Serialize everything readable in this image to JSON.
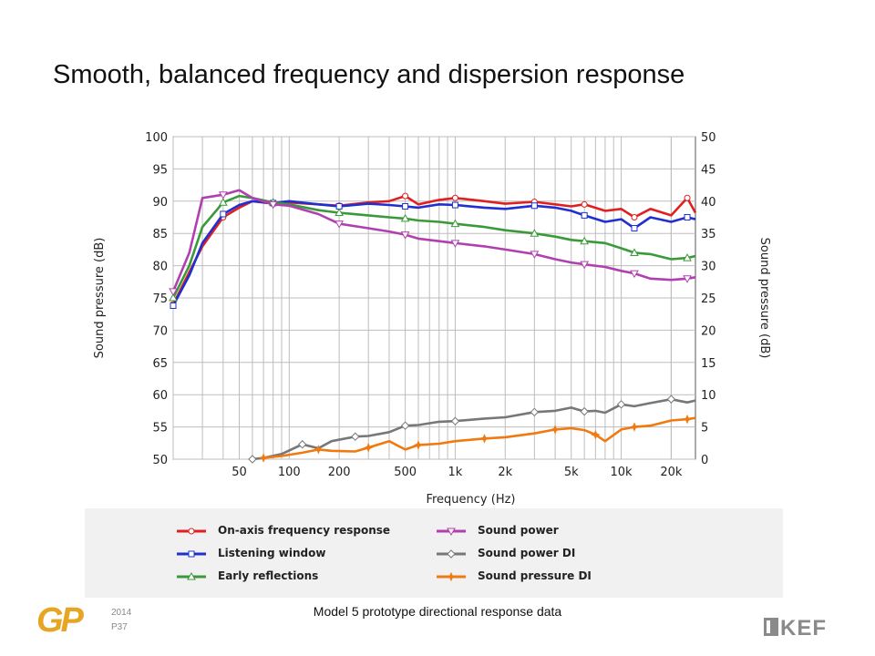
{
  "slide": {
    "title": "Smooth, balanced frequency and dispersion response",
    "footer_caption": "Model 5 prototype directional response data",
    "footer_year": "2014",
    "footer_page": "P37",
    "logo_left": "GP",
    "logo_right": "KEF",
    "logo_left_color": "#e6a623",
    "logo_right_color": "#8a8a8a"
  },
  "chart_data": {
    "type": "line",
    "title": "",
    "xlabel": "Frequency (Hz)",
    "ylabel": "Sound pressure (dB)",
    "y2label": "Sound pressure (dB)",
    "xscale": "log",
    "xlim": [
      20,
      28000
    ],
    "ylim": [
      50,
      100
    ],
    "y2lim": [
      0,
      50
    ],
    "grid": true,
    "y_ticks": [
      50,
      55,
      60,
      65,
      70,
      75,
      80,
      85,
      90,
      95,
      100
    ],
    "y2_ticks": [
      0,
      5,
      10,
      15,
      20,
      25,
      30,
      35,
      40,
      45,
      50
    ],
    "x_ticks": [
      {
        "value": 50,
        "label": "50"
      },
      {
        "value": 100,
        "label": "100"
      },
      {
        "value": 200,
        "label": "200"
      },
      {
        "value": 500,
        "label": "500"
      },
      {
        "value": 1000,
        "label": "1k"
      },
      {
        "value": 2000,
        "label": "2k"
      },
      {
        "value": 5000,
        "label": "5k"
      },
      {
        "value": 10000,
        "label": "10k"
      },
      {
        "value": 20000,
        "label": "20k"
      }
    ],
    "legend_position": "bottom",
    "series": [
      {
        "name": "On-axis frequency response",
        "color": "#e02020",
        "marker": "circle",
        "axis": "left",
        "x": [
          20,
          25,
          30,
          40,
          50,
          60,
          80,
          100,
          150,
          200,
          300,
          400,
          500,
          600,
          800,
          1000,
          1500,
          2000,
          3000,
          4000,
          5000,
          6000,
          8000,
          10000,
          12000,
          15000,
          20000,
          25000,
          28000
        ],
        "y": [
          74,
          79,
          83,
          87.5,
          89,
          90,
          89.6,
          89.8,
          89.5,
          89.3,
          89.8,
          90,
          90.8,
          89.5,
          90.2,
          90.5,
          90,
          89.6,
          89.9,
          89.5,
          89.2,
          89.5,
          88.5,
          88.8,
          87.5,
          88.8,
          87.8,
          90.5,
          88.2
        ]
      },
      {
        "name": "Listening window",
        "color": "#2030d0",
        "marker": "square",
        "axis": "left",
        "x": [
          20,
          25,
          30,
          40,
          50,
          60,
          80,
          100,
          150,
          200,
          300,
          400,
          500,
          600,
          800,
          1000,
          1500,
          2000,
          3000,
          4000,
          5000,
          6000,
          8000,
          10000,
          12000,
          15000,
          20000,
          25000,
          28000
        ],
        "y": [
          73.8,
          78.5,
          83.5,
          88,
          89.4,
          90,
          89.7,
          90,
          89.5,
          89.2,
          89.6,
          89.4,
          89.2,
          89,
          89.5,
          89.4,
          89,
          88.8,
          89.3,
          89,
          88.5,
          87.8,
          86.8,
          87.2,
          85.8,
          87.5,
          86.8,
          87.5,
          87.2
        ]
      },
      {
        "name": "Early reflections",
        "color": "#3a9a3a",
        "marker": "triangle-up",
        "axis": "left",
        "x": [
          20,
          25,
          30,
          40,
          50,
          60,
          80,
          100,
          150,
          200,
          300,
          400,
          500,
          600,
          800,
          1000,
          1500,
          2000,
          3000,
          4000,
          5000,
          6000,
          8000,
          10000,
          12000,
          15000,
          20000,
          25000,
          28000
        ],
        "y": [
          75,
          80,
          86,
          89.8,
          90.8,
          90.5,
          89.8,
          89.5,
          88.6,
          88.2,
          87.8,
          87.5,
          87.3,
          87,
          86.8,
          86.5,
          86,
          85.5,
          85,
          84.5,
          84,
          83.8,
          83.5,
          82.7,
          82,
          81.8,
          81,
          81.2,
          81.5
        ]
      },
      {
        "name": "Sound power",
        "color": "#b040b0",
        "marker": "triangle-down",
        "axis": "left",
        "x": [
          20,
          25,
          30,
          40,
          50,
          60,
          80,
          100,
          150,
          200,
          300,
          400,
          500,
          600,
          800,
          1000,
          1500,
          2000,
          3000,
          4000,
          5000,
          6000,
          8000,
          10000,
          12000,
          15000,
          20000,
          25000,
          28000
        ],
        "y": [
          76,
          82,
          90.5,
          91,
          91.7,
          90.5,
          89.5,
          89.3,
          88,
          86.5,
          85.8,
          85.3,
          84.8,
          84.2,
          83.8,
          83.5,
          83,
          82.5,
          81.8,
          81,
          80.5,
          80.2,
          79.8,
          79.2,
          78.8,
          78,
          77.8,
          78,
          78.2
        ]
      },
      {
        "name": "Sound power DI",
        "color": "#777777",
        "marker": "diamond",
        "axis": "right",
        "x": [
          60,
          70,
          90,
          120,
          150,
          180,
          250,
          300,
          400,
          500,
          600,
          800,
          1000,
          1500,
          2000,
          3000,
          4000,
          5000,
          6000,
          7000,
          8000,
          10000,
          12000,
          15000,
          20000,
          25000,
          28000
        ],
        "y": [
          0,
          0.2,
          0.8,
          2.3,
          1.7,
          2.8,
          3.5,
          3.6,
          4.2,
          5.2,
          5.3,
          5.8,
          5.9,
          6.3,
          6.5,
          7.3,
          7.5,
          8,
          7.4,
          7.5,
          7.2,
          8.5,
          8.2,
          8.7,
          9.3,
          8.8,
          9.1
        ]
      },
      {
        "name": "Sound pressure DI",
        "color": "#f07a10",
        "marker": "star",
        "axis": "right",
        "x": [
          70,
          90,
          120,
          150,
          180,
          250,
          300,
          400,
          500,
          600,
          800,
          1000,
          1500,
          2000,
          3000,
          4000,
          5000,
          6000,
          7000,
          8000,
          10000,
          12000,
          15000,
          20000,
          25000,
          28000
        ],
        "y": [
          0.2,
          0.5,
          1,
          1.5,
          1.3,
          1.2,
          1.8,
          2.8,
          1.5,
          2.2,
          2.4,
          2.8,
          3.2,
          3.4,
          4,
          4.6,
          4.8,
          4.5,
          3.8,
          2.8,
          4.6,
          5,
          5.2,
          6,
          6.2,
          6.4
        ]
      }
    ]
  }
}
